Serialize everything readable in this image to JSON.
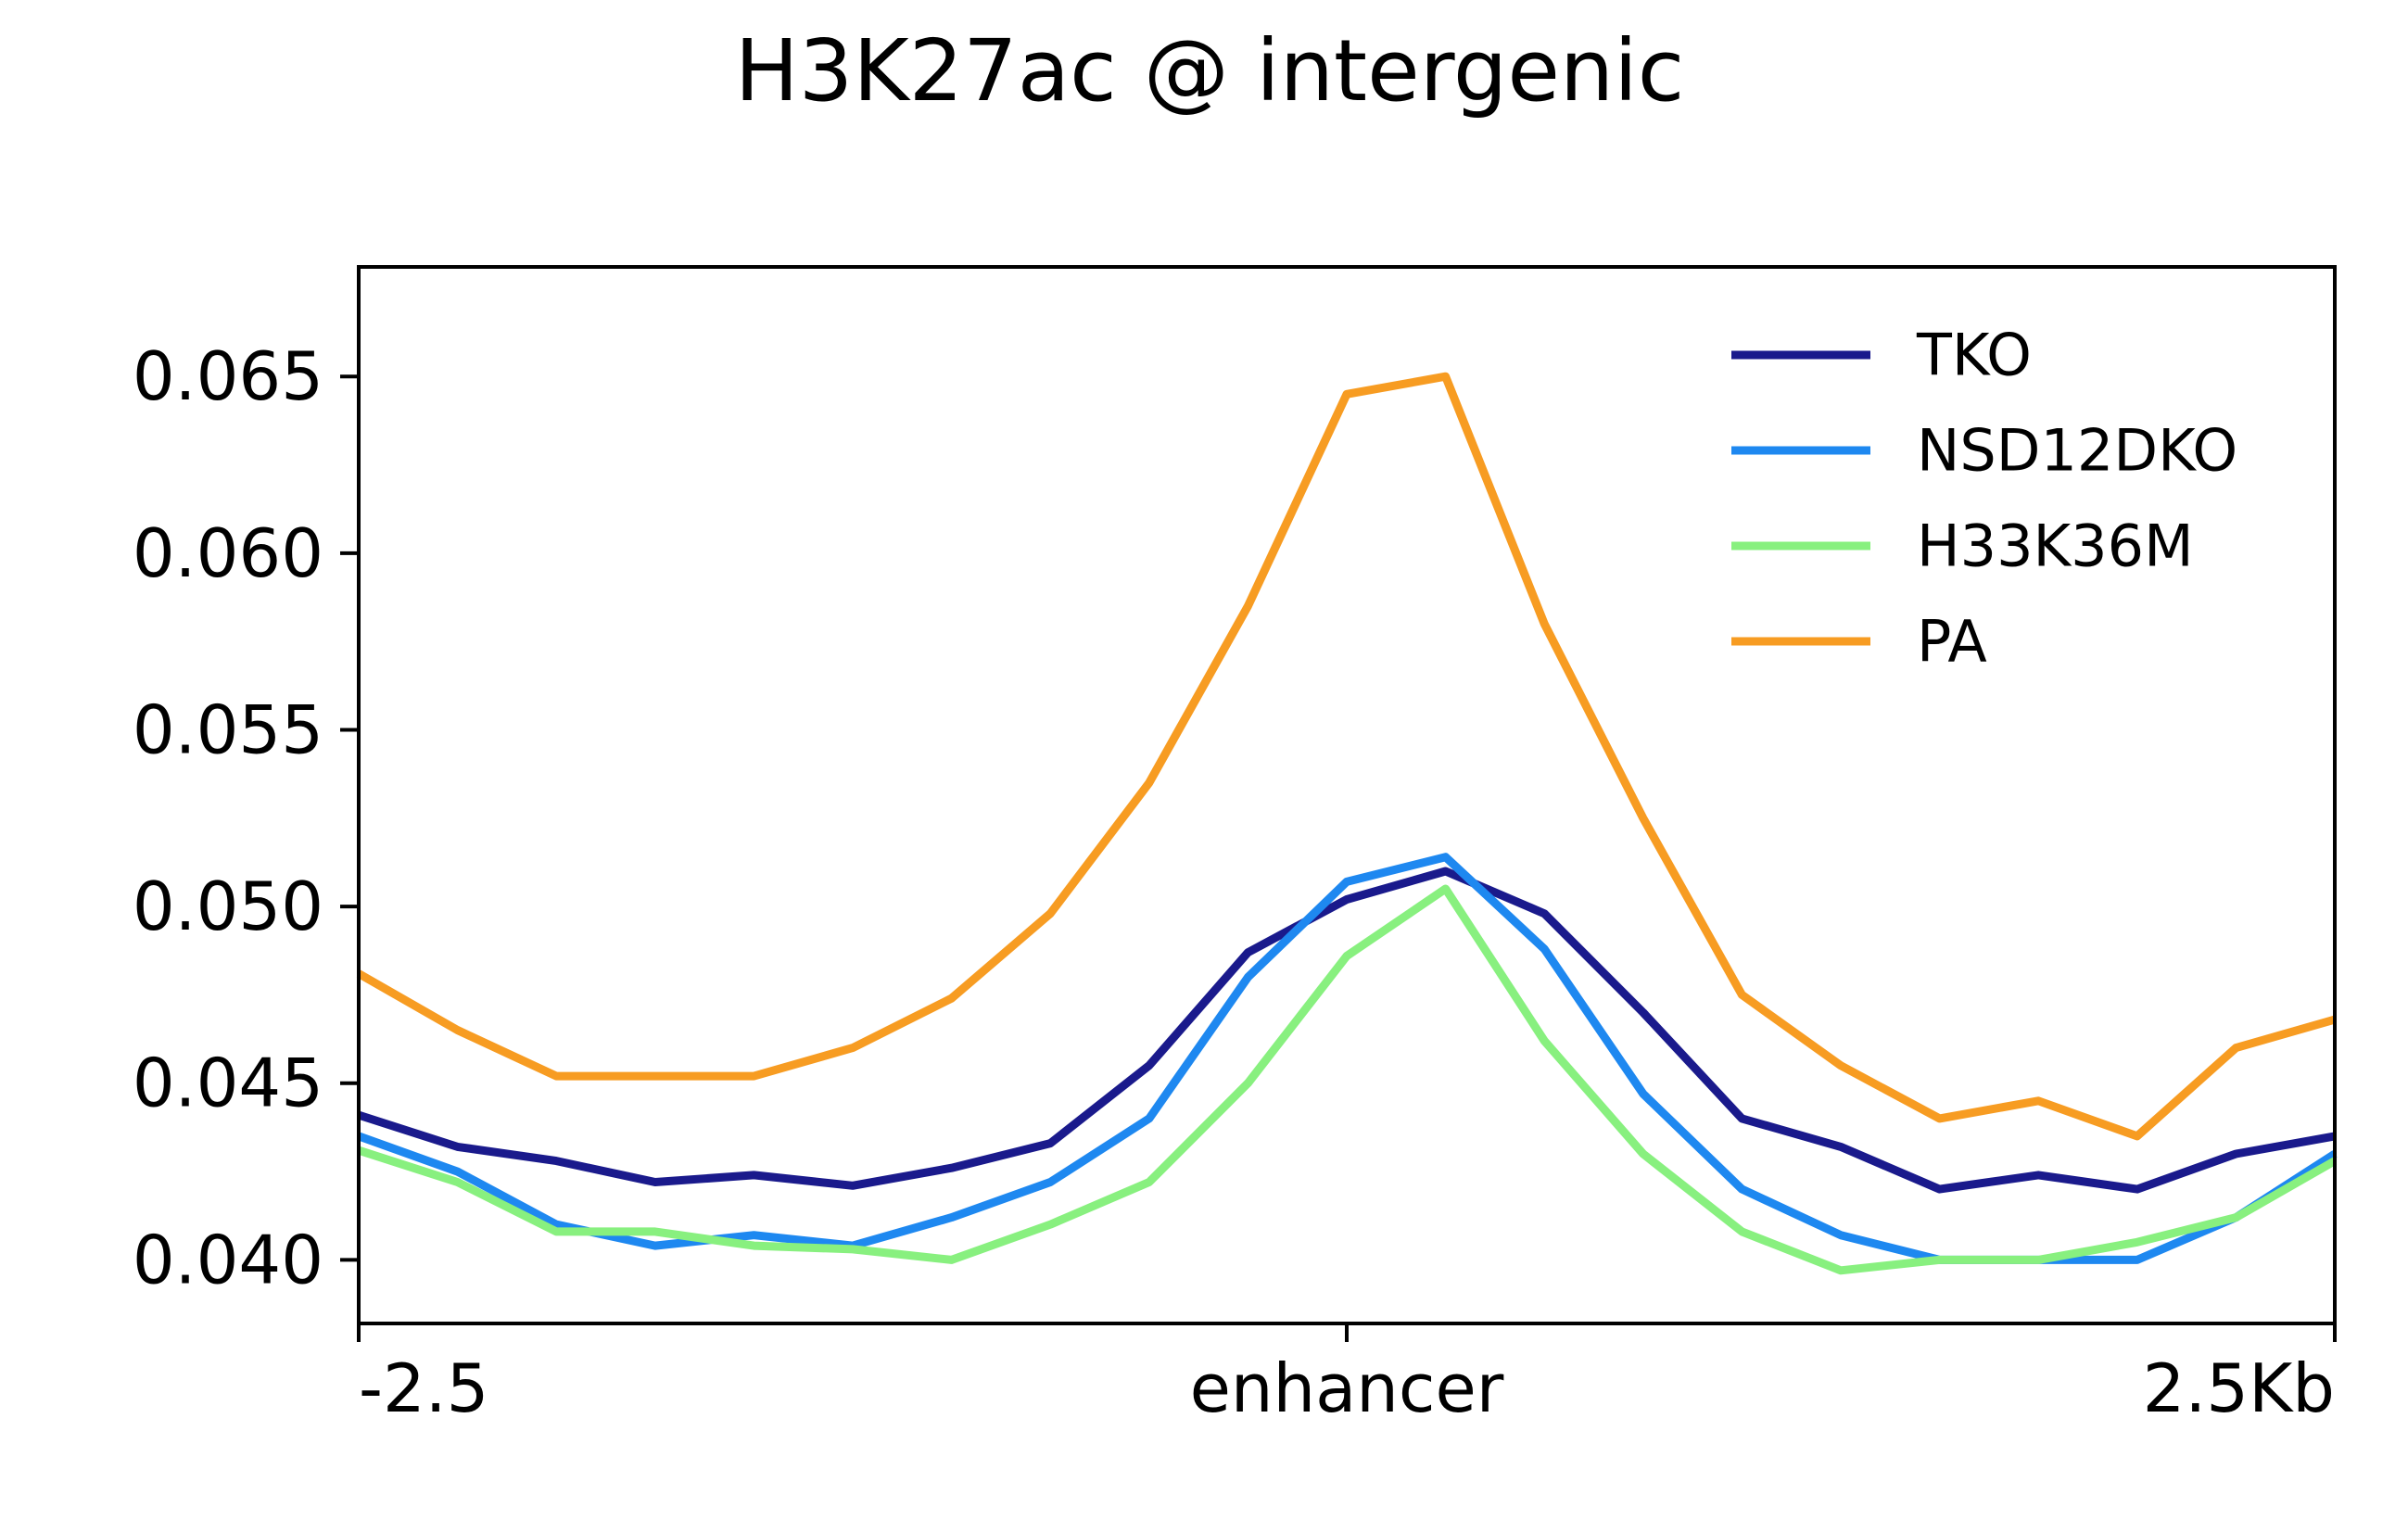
{
  "chart_data": {
    "type": "line",
    "title": "H3K27ac @ intergenic",
    "xlabel": "",
    "ylabel": "",
    "x_ticks": [
      {
        "x": -2.5,
        "label": "-2.5"
      },
      {
        "x": 0,
        "label": "enhancer"
      },
      {
        "x": 2.5,
        "label": "2.5Kb"
      }
    ],
    "y_ticks": [
      {
        "y": 0.04,
        "label": "0.040"
      },
      {
        "y": 0.045,
        "label": "0.045"
      },
      {
        "y": 0.05,
        "label": "0.050"
      },
      {
        "y": 0.055,
        "label": "0.055"
      },
      {
        "y": 0.06,
        "label": "0.060"
      },
      {
        "y": 0.065,
        "label": "0.065"
      }
    ],
    "xlim": [
      -2.5,
      2.5
    ],
    "ylim": [
      0.0382,
      0.0681
    ],
    "grid": false,
    "legend_position": "top-right",
    "x": [
      -2.5,
      -2.25,
      -2.0,
      -1.75,
      -1.5,
      -1.25,
      -1.0,
      -0.75,
      -0.5,
      -0.25,
      0.0,
      0.25,
      0.5,
      0.75,
      1.0,
      1.25,
      1.5,
      1.75,
      2.0,
      2.25,
      2.5
    ],
    "series": [
      {
        "name": "TKO",
        "color": "#1a1a8c",
        "values": [
          0.0441,
          0.0432,
          0.0428,
          0.0422,
          0.0424,
          0.0421,
          0.0426,
          0.0433,
          0.0455,
          0.0487,
          0.0502,
          0.051,
          0.0498,
          0.047,
          0.044,
          0.0432,
          0.042,
          0.0424,
          0.042,
          0.043,
          0.0435
        ]
      },
      {
        "name": "NSD12DKO",
        "color": "#1e88f0",
        "values": [
          0.0435,
          0.0425,
          0.041,
          0.0404,
          0.0407,
          0.0404,
          0.0412,
          0.0422,
          0.044,
          0.048,
          0.0507,
          0.0514,
          0.0488,
          0.0447,
          0.042,
          0.0407,
          0.04,
          0.04,
          0.04,
          0.0412,
          0.043
        ]
      },
      {
        "name": "H33K36M",
        "color": "#88f07f",
        "values": [
          0.0431,
          0.0422,
          0.0408,
          0.0408,
          0.0404,
          0.0403,
          0.04,
          0.041,
          0.0422,
          0.045,
          0.0486,
          0.0505,
          0.0462,
          0.043,
          0.0408,
          0.0397,
          0.04,
          0.04,
          0.0405,
          0.0412,
          0.0428
        ]
      },
      {
        "name": "PA",
        "color": "#f79c22",
        "values": [
          0.0481,
          0.0465,
          0.0452,
          0.0452,
          0.0452,
          0.046,
          0.0474,
          0.0498,
          0.0535,
          0.0585,
          0.0645,
          0.065,
          0.058,
          0.0525,
          0.0475,
          0.0455,
          0.044,
          0.0445,
          0.0435,
          0.046,
          0.0468
        ]
      }
    ]
  }
}
